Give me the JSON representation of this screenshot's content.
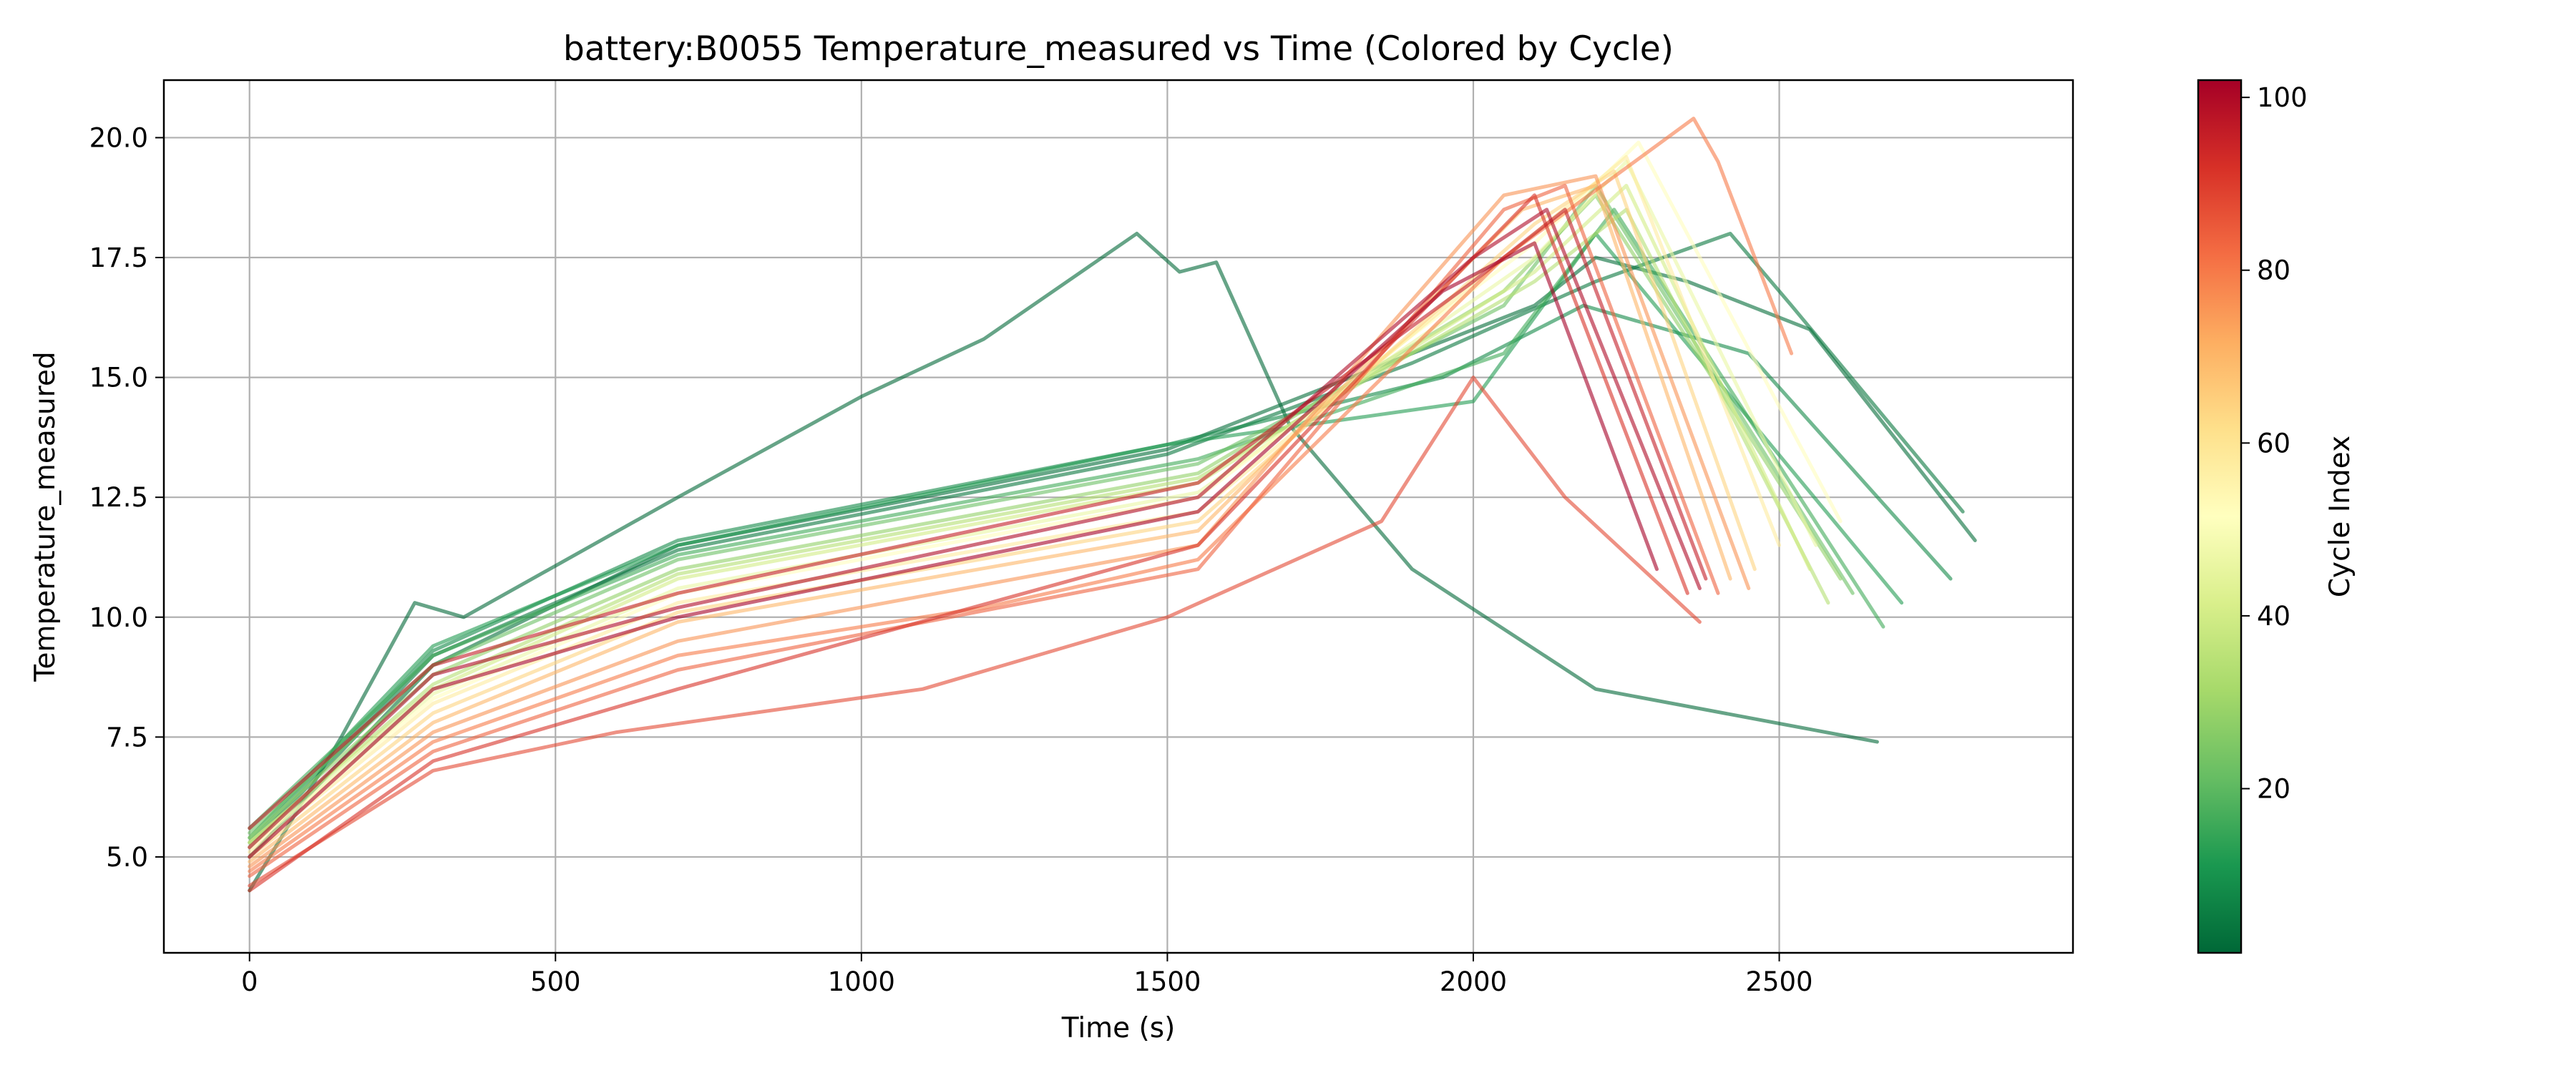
{
  "chart_data": {
    "type": "line",
    "title": "battery:B0055 Temperature_measured vs Time (Colored by Cycle)",
    "xlabel": "Time (s)",
    "ylabel": "Temperature_measured",
    "xlim": [
      -140,
      2980
    ],
    "ylim": [
      3.0,
      21.2
    ],
    "xticks": [
      0,
      500,
      1000,
      1500,
      2000,
      2500
    ],
    "yticks": [
      5.0,
      7.5,
      10.0,
      12.5,
      15.0,
      17.5,
      20.0
    ],
    "xtick_labels": [
      "0",
      "500",
      "1000",
      "1500",
      "2000",
      "2500"
    ],
    "ytick_labels": [
      "5.0",
      "7.5",
      "10.0",
      "12.5",
      "15.0",
      "17.5",
      "20.0"
    ],
    "grid": true,
    "colorbar": {
      "label": "Cycle Index",
      "min": 1,
      "max": 102,
      "ticks": [
        20,
        40,
        60,
        80,
        100
      ],
      "tick_labels": [
        "20",
        "40",
        "60",
        "80",
        "100"
      ],
      "colormap": "RdYlGn_r",
      "colors": [
        "#006837",
        "#1a9850",
        "#66bd63",
        "#a6d96a",
        "#d9ef8b",
        "#ffffbf",
        "#fee08b",
        "#fdae61",
        "#f46d43",
        "#d73027",
        "#a50026"
      ]
    },
    "series": [
      {
        "cycle": 1,
        "x": [
          0,
          150,
          270,
          350,
          700,
          1000,
          1200,
          1450,
          1520,
          1580,
          1700,
          1900,
          2200,
          2660
        ],
        "y": [
          4.3,
          7.5,
          10.3,
          10.0,
          12.5,
          14.6,
          15.8,
          18.0,
          17.2,
          17.4,
          14.0,
          11.0,
          8.5,
          7.4
        ]
      },
      {
        "cycle": 2,
        "x": [
          0,
          300,
          700,
          1500,
          1900,
          2100,
          2200,
          2350,
          2550,
          2820
        ],
        "y": [
          5.0,
          9.0,
          11.5,
          13.5,
          15.5,
          16.5,
          17.5,
          17.0,
          16.0,
          11.6
        ]
      },
      {
        "cycle": 4,
        "x": [
          0,
          300,
          700,
          1500,
          1900,
          2200,
          2420,
          2520,
          2800
        ],
        "y": [
          5.2,
          9.2,
          11.4,
          13.4,
          15.3,
          17.0,
          18.0,
          16.5,
          12.2
        ]
      },
      {
        "cycle": 8,
        "x": [
          0,
          300,
          700,
          1500,
          1950,
          2180,
          2450,
          2780
        ],
        "y": [
          5.3,
          9.3,
          11.6,
          13.6,
          15.0,
          16.5,
          15.5,
          10.8
        ]
      },
      {
        "cycle": 12,
        "x": [
          0,
          300,
          700,
          1500,
          2000,
          2200,
          2700
        ],
        "y": [
          5.4,
          9.4,
          11.5,
          13.6,
          14.5,
          18.0,
          10.3
        ]
      },
      {
        "cycle": 16,
        "x": [
          0,
          300,
          700,
          1550,
          2050,
          2230,
          2670
        ],
        "y": [
          5.6,
          9.2,
          11.3,
          13.3,
          15.5,
          18.5,
          9.8
        ]
      },
      {
        "cycle": 22,
        "x": [
          0,
          300,
          700,
          1550,
          2050,
          2200,
          2620
        ],
        "y": [
          5.5,
          9.0,
          11.2,
          13.2,
          16.5,
          19.0,
          10.5
        ]
      },
      {
        "cycle": 28,
        "x": [
          0,
          300,
          700,
          1550,
          2050,
          2200,
          2600
        ],
        "y": [
          5.4,
          8.8,
          11.0,
          13.0,
          16.8,
          18.8,
          10.8
        ]
      },
      {
        "cycle": 34,
        "x": [
          0,
          300,
          700,
          1550,
          2100,
          2250,
          2580
        ],
        "y": [
          5.3,
          8.6,
          10.9,
          12.9,
          17.0,
          18.5,
          10.3
        ]
      },
      {
        "cycle": 40,
        "x": [
          0,
          300,
          700,
          1550,
          2100,
          2250,
          2550
        ],
        "y": [
          5.3,
          8.5,
          10.8,
          12.8,
          17.2,
          19.0,
          11.0
        ]
      },
      {
        "cycle": 46,
        "x": [
          0,
          300,
          700,
          1550,
          2100,
          2250,
          2560
        ],
        "y": [
          5.2,
          8.4,
          10.6,
          12.6,
          17.5,
          19.5,
          11.5
        ]
      },
      {
        "cycle": 52,
        "x": [
          0,
          300,
          700,
          1550,
          2100,
          2270,
          2600
        ],
        "y": [
          5.2,
          8.3,
          10.5,
          12.5,
          17.8,
          19.9,
          12.0
        ]
      },
      {
        "cycle": 58,
        "x": [
          0,
          300,
          700,
          1550,
          2100,
          2250,
          2500
        ],
        "y": [
          5.1,
          8.2,
          10.3,
          12.2,
          18.0,
          19.6,
          11.5
        ]
      },
      {
        "cycle": 64,
        "x": [
          0,
          300,
          700,
          1550,
          2100,
          2230,
          2460
        ],
        "y": [
          5.0,
          8.0,
          10.1,
          12.0,
          18.2,
          19.3,
          11.0
        ]
      },
      {
        "cycle": 70,
        "x": [
          0,
          300,
          700,
          1550,
          2080,
          2200,
          2420
        ],
        "y": [
          4.9,
          7.8,
          9.9,
          11.8,
          18.5,
          19.0,
          10.8
        ]
      },
      {
        "cycle": 76,
        "x": [
          0,
          300,
          700,
          1550,
          2050,
          2200,
          2450
        ],
        "y": [
          4.8,
          7.6,
          9.5,
          11.5,
          18.8,
          19.2,
          10.6
        ]
      },
      {
        "cycle": 80,
        "x": [
          0,
          300,
          700,
          1200,
          1550,
          2050,
          2360,
          2400,
          2520
        ],
        "y": [
          4.7,
          7.4,
          9.2,
          10.2,
          11.2,
          17.5,
          20.4,
          19.5,
          15.5
        ]
      },
      {
        "cycle": 84,
        "x": [
          0,
          300,
          700,
          1550,
          2050,
          2150,
          2400
        ],
        "y": [
          4.6,
          7.2,
          8.9,
          11.0,
          18.5,
          19.0,
          10.5
        ]
      },
      {
        "cycle": 88,
        "x": [
          0,
          300,
          600,
          1100,
          1500,
          1850,
          2000,
          2150,
          2370
        ],
        "y": [
          4.4,
          6.8,
          7.6,
          8.5,
          10.0,
          12.0,
          15.0,
          12.5,
          9.9
        ]
      },
      {
        "cycle": 92,
        "x": [
          0,
          300,
          700,
          1550,
          2000,
          2100,
          2350
        ],
        "y": [
          4.3,
          7.0,
          8.5,
          11.5,
          17.5,
          18.8,
          10.5
        ]
      },
      {
        "cycle": 96,
        "x": [
          0,
          300,
          700,
          1550,
          2000,
          2150,
          2380
        ],
        "y": [
          5.6,
          9.0,
          10.5,
          12.8,
          17.0,
          18.5,
          10.8
        ]
      },
      {
        "cycle": 100,
        "x": [
          0,
          300,
          700,
          1550,
          2000,
          2120,
          2370
        ],
        "y": [
          5.2,
          8.8,
          10.2,
          12.5,
          17.5,
          18.5,
          10.6
        ]
      },
      {
        "cycle": 102,
        "x": [
          0,
          300,
          700,
          1550,
          1950,
          2100,
          2300
        ],
        "y": [
          5.0,
          8.5,
          10.0,
          12.2,
          16.8,
          17.8,
          11.0
        ]
      }
    ]
  }
}
